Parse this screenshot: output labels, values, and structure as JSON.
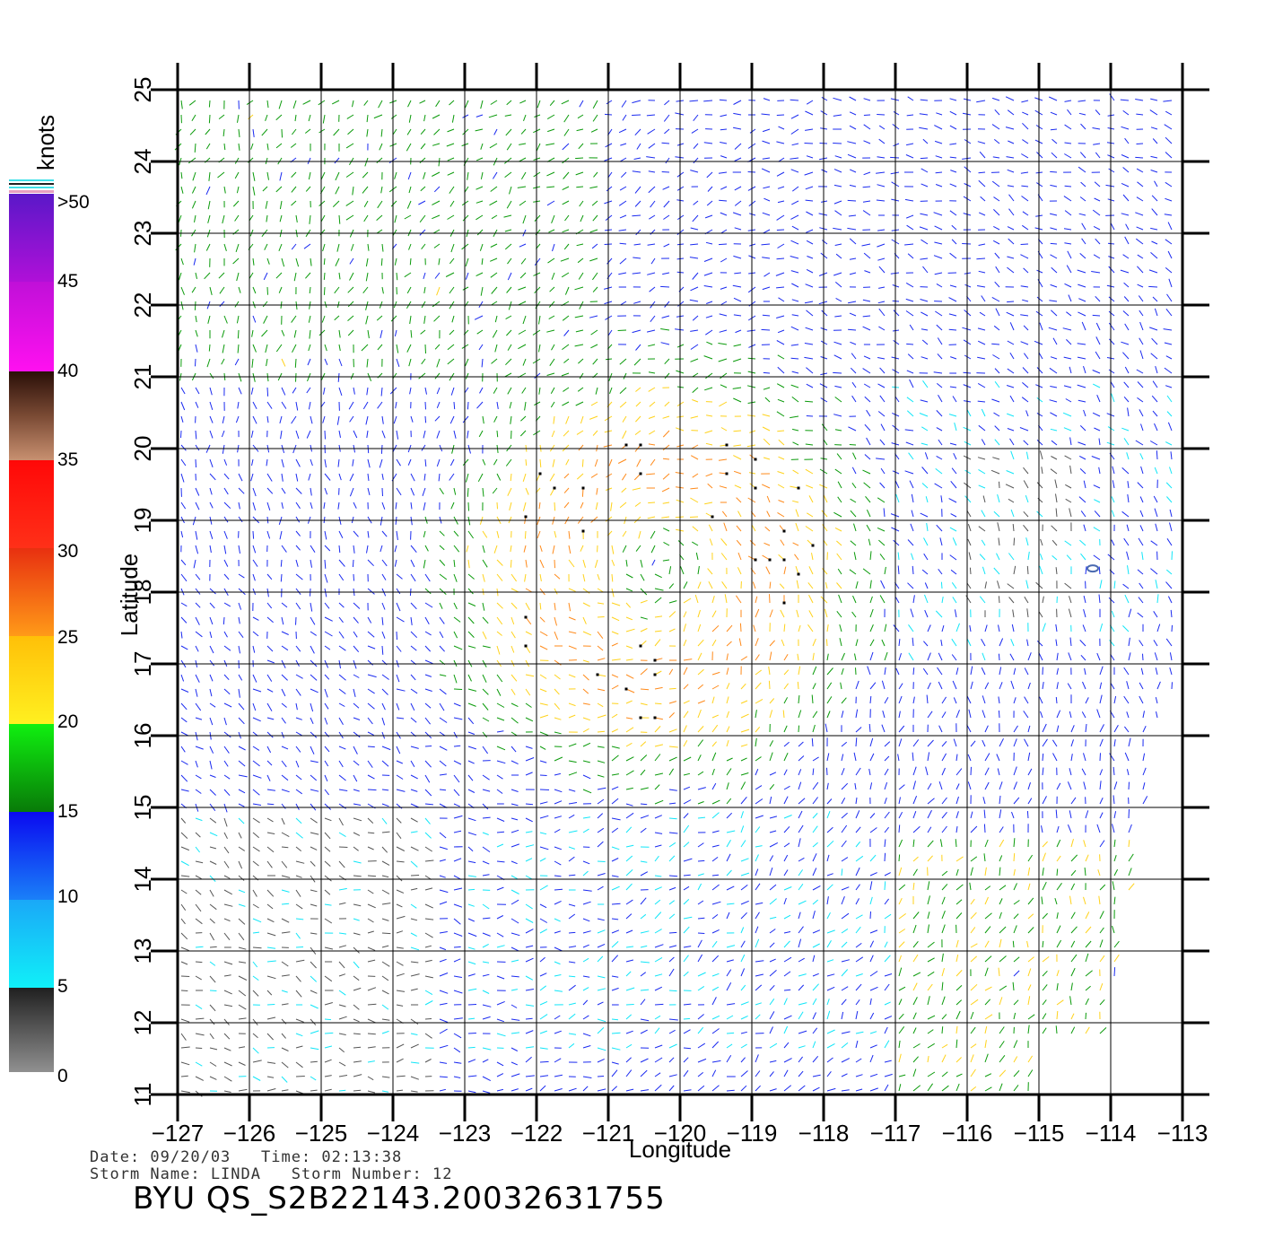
{
  "map": {
    "x_axis_label": "Longitude",
    "y_axis_label": "Latitude",
    "x_ticks": [
      "-127",
      "-126",
      "-125",
      "-124",
      "-123",
      "-122",
      "-121",
      "-120",
      "-119",
      "-118",
      "-117",
      "-116",
      "-115",
      "-114",
      "-113"
    ],
    "y_ticks": [
      "11",
      "12",
      "13",
      "14",
      "15",
      "16",
      "17",
      "18",
      "19",
      "20",
      "21",
      "22",
      "23",
      "24",
      "25"
    ],
    "lon_range": [
      -127,
      -113
    ],
    "lat_range": [
      11,
      25
    ]
  },
  "colorbar": {
    "unit_label": "knots",
    "labels": [
      ">50",
      "45",
      "40",
      "35",
      "30",
      "25",
      "20",
      "15",
      "10",
      "5",
      "0"
    ],
    "colors": {
      "gt50": "#7a22c8",
      "40_45": "#e21be8",
      "35_40": "#5a2a1a",
      "30_35": "#ff1a1a",
      "25_30": "#ff8a1a",
      "20_25": "#ffd21a",
      "15_20": "#0a9a0a",
      "10_15": "#1a2af0",
      "5_10": "#10e6f8",
      "0_5": "#555555"
    }
  },
  "footer": {
    "date_line": "Date: 09/20/03   Time: 02:13:38",
    "storm_line": "Storm Name: LINDA   Storm Number: 12",
    "product": "BYU QS_S2B22143.20032631755"
  }
}
